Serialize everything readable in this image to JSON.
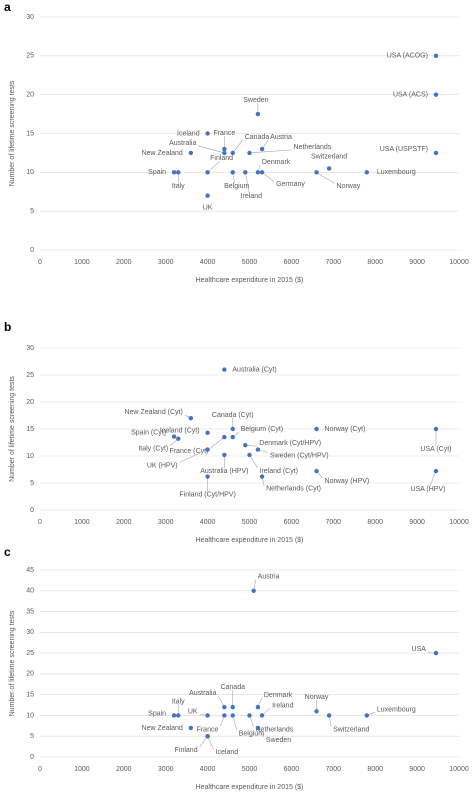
{
  "chart_data": [
    {
      "type": "scatter",
      "panel": "a",
      "x_label": "Healthcare expenditure in 2015 ($)",
      "y_label": "Number of lifetime screening tests",
      "color": "#4472c4",
      "grid": true,
      "xlim": [
        0,
        10000
      ],
      "xticks": [
        0,
        1000,
        2000,
        3000,
        4000,
        5000,
        6000,
        7000,
        8000,
        9000,
        10000
      ],
      "ylim": [
        0,
        30
      ],
      "yticks": [
        0,
        5,
        10,
        15,
        20,
        25,
        30
      ],
      "point_labels": [
        "USA (ACOG)",
        "USA (ACS)",
        "USA (USPSTF)",
        "Sweden",
        "Iceland",
        "France",
        "Australia",
        "Canada",
        "Austria",
        "Netherlands",
        "New Zealand",
        "Finland",
        "Spain",
        "Italy",
        "UK",
        "Belgium",
        "Ireland",
        "Denmark",
        "Germany",
        "Norway",
        "Luxembourg",
        "Switzerland"
      ],
      "x": [
        9450,
        9450,
        9450,
        5200,
        4000,
        4400,
        4400,
        4600,
        5300,
        5000,
        3600,
        4000,
        3200,
        3300,
        4000,
        4600,
        4900,
        5200,
        5300,
        6600,
        7800,
        6900
      ],
      "values": [
        25,
        20,
        12.5,
        17.5,
        15,
        13,
        12.5,
        12.5,
        13,
        12.5,
        12.5,
        10,
        10,
        10,
        7,
        10,
        10,
        10,
        10,
        10,
        10,
        10.5
      ]
    },
    {
      "type": "scatter",
      "panel": "b",
      "x_label": "Healthcare expenditure in 2015 ($)",
      "y_label": "Number of lifetime screening tests",
      "color": "#4472c4",
      "grid": true,
      "xlim": [
        0,
        10000
      ],
      "xticks": [
        0,
        1000,
        2000,
        3000,
        4000,
        5000,
        6000,
        7000,
        8000,
        9000,
        10000
      ],
      "ylim": [
        0,
        30
      ],
      "yticks": [
        0,
        5,
        10,
        15,
        20,
        25,
        30
      ],
      "point_labels": [
        "Australia (Cyt)",
        "New Zealand (Cyt)",
        "Iceland (Cyt)",
        "Canada (Cyt)",
        "Belgium (Cyt)",
        "Spain (Cyt)",
        "Italy (Cyt)",
        "France (Cyt)",
        "UK (HPV)",
        "Australia (HPV)",
        "Denmark (Cyt/HPV)",
        "Sweden (Cyt/HPV)",
        "Ireland (Cyt)",
        "Netherlands (Cyt)",
        "Finland (Cyt/HPV)",
        "Norway (Cyt)",
        "Norway (HPV)",
        "USA (Cyt)",
        "USA (HPV)"
      ],
      "x": [
        4400,
        3600,
        4000,
        4600,
        4600,
        3200,
        3300,
        4400,
        4000,
        4400,
        4900,
        5200,
        5000,
        5300,
        4000,
        6600,
        6600,
        9450,
        9450
      ],
      "values": [
        26,
        17,
        14.3,
        15,
        13.5,
        13.6,
        13.2,
        13.5,
        11.2,
        10.2,
        12,
        11.2,
        10.2,
        6.2,
        6.2,
        15,
        7.2,
        15,
        7.2
      ]
    },
    {
      "type": "scatter",
      "panel": "c",
      "x_label": "Healthcare expenditure in 2015 ($)",
      "y_label": "Number of lifetime screening tests",
      "color": "#4472c4",
      "grid": true,
      "xlim": [
        0,
        10000
      ],
      "xticks": [
        0,
        1000,
        2000,
        3000,
        4000,
        5000,
        6000,
        7000,
        8000,
        9000,
        10000
      ],
      "ylim": [
        0,
        45
      ],
      "yticks": [
        0,
        5,
        10,
        15,
        20,
        25,
        30,
        35,
        40,
        45
      ],
      "point_labels": [
        "Austria",
        "USA",
        "Norway",
        "Luxembourg",
        "Switzerland",
        "Denmark",
        "Ireland",
        "Netherlands",
        "Sweden",
        "Canada",
        "Australia",
        "France",
        "Belgium",
        "Spain",
        "Italy",
        "UK",
        "New Zealand",
        "Finland",
        "Iceland"
      ],
      "x": [
        5100,
        9450,
        6600,
        7800,
        6900,
        5200,
        5300,
        5000,
        5200,
        4600,
        4400,
        4400,
        4600,
        3200,
        3300,
        4000,
        3600,
        4000,
        4000
      ],
      "values": [
        40,
        25,
        11,
        10,
        10,
        12,
        10,
        10,
        7,
        12,
        12,
        10,
        10,
        10,
        10,
        10,
        7,
        5,
        5
      ]
    }
  ]
}
